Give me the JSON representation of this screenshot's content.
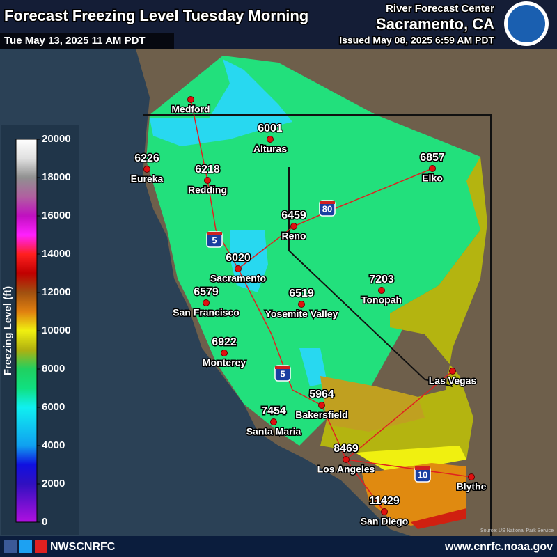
{
  "header": {
    "title": "Forecast Freezing Level Tuesday Morning",
    "valid": "Tue May 13, 2025 11 AM PDT",
    "office": "River Forecast Center",
    "location": "Sacramento, CA",
    "issued": "Issued May 08, 2025 6:59 AM PDT"
  },
  "legend": {
    "title": "Freezing Level (ft)",
    "ticks": [
      0,
      2000,
      4000,
      6000,
      8000,
      10000,
      12000,
      14000,
      16000,
      18000,
      20000
    ]
  },
  "cities": [
    {
      "name": "Medford"
    },
    {
      "name": "Alturas",
      "value": 6001
    },
    {
      "name": "Eureka",
      "value": 6226
    },
    {
      "name": "Redding",
      "value": 6218
    },
    {
      "name": "Elko",
      "value": 6857
    },
    {
      "name": "Reno",
      "value": 6459
    },
    {
      "name": "Sacramento",
      "value": 6020
    },
    {
      "name": "San Francisco",
      "value": 6579
    },
    {
      "name": "Yosemite Valley",
      "value": 6519
    },
    {
      "name": "Tonopah",
      "value": 7203
    },
    {
      "name": "Monterey",
      "value": 6922
    },
    {
      "name": "Las Vegas"
    },
    {
      "name": "Bakersfield",
      "value": 5964
    },
    {
      "name": "Santa Maria",
      "value": 7454
    },
    {
      "name": "Los Angeles",
      "value": 8469
    },
    {
      "name": "Blythe"
    },
    {
      "name": "San Diego",
      "value": 11429
    }
  ],
  "highways": [
    "5",
    "80",
    "5",
    "10"
  ],
  "credit": "Source: US National Park Service",
  "footer": {
    "social": "NWSCNRFC",
    "url": "www.cnrfc.noaa.gov"
  }
}
